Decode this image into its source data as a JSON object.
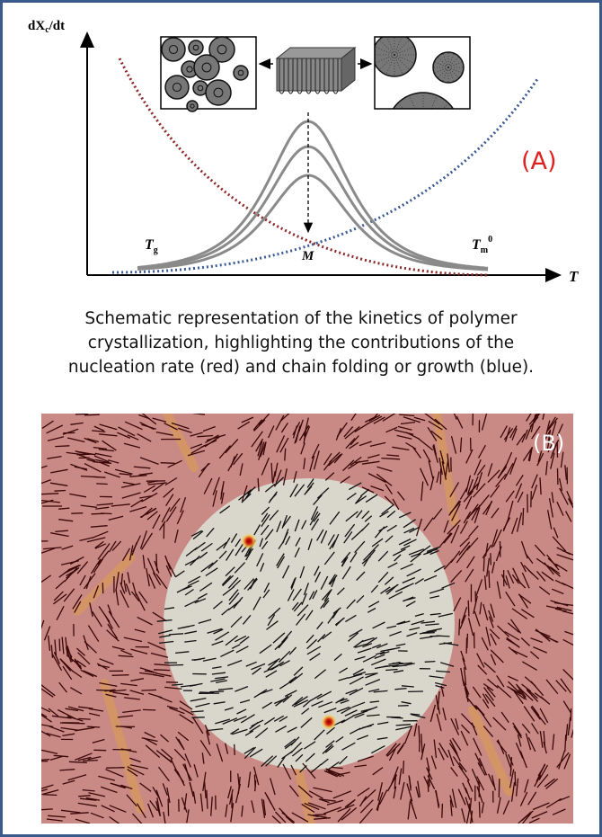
{
  "panel_a": {
    "label": "(A)",
    "y_axis_label": {
      "main": "dX",
      "sub": "c",
      "tail": "/dt"
    },
    "x_axis_label": "T",
    "tg_label": {
      "main": "T",
      "sub": "g"
    },
    "tm_label": {
      "main": "T",
      "sub": "m",
      "sup": "0"
    },
    "m_label": "M",
    "colors": {
      "nucleation": "#8b2a2a",
      "growth": "#3a5a95",
      "rate_curves": "#8a8a8a",
      "label": "#e02020"
    }
  },
  "caption": {
    "lines": [
      "Schematic representation of the kinetics of polymer",
      "crystallization, highlighting the contributions of the",
      "nucleation rate (red) and chain folding or growth (blue)."
    ]
  },
  "panel_b": {
    "label": "(B)",
    "colors": {
      "background": "#c98a86",
      "domain": "#d9d6cc",
      "defect": "#c41a10",
      "rods": "#2a0a0a"
    }
  }
}
